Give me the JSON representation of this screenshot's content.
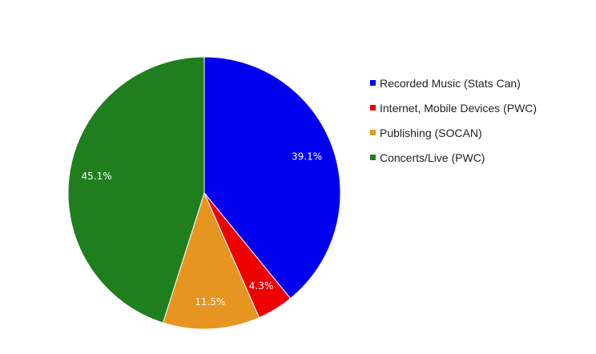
{
  "chart_data": {
    "type": "pie",
    "title": "",
    "slices": [
      {
        "name": "Recorded Music (Stats Can)",
        "value": 39.1,
        "label": "39.1%",
        "color": "#0000ee"
      },
      {
        "name": "Internet, Mobile Devices (PWC)",
        "value": 4.3,
        "label": "4.3%",
        "color": "#ee0000"
      },
      {
        "name": "Publishing (SOCAN)",
        "value": 11.5,
        "label": "11.5%",
        "color": "#e69520"
      },
      {
        "name": "Concerts/Live (PWC)",
        "value": 45.1,
        "label": "45.1%",
        "color": "#1f7f1f"
      }
    ],
    "legend_position": "right"
  }
}
